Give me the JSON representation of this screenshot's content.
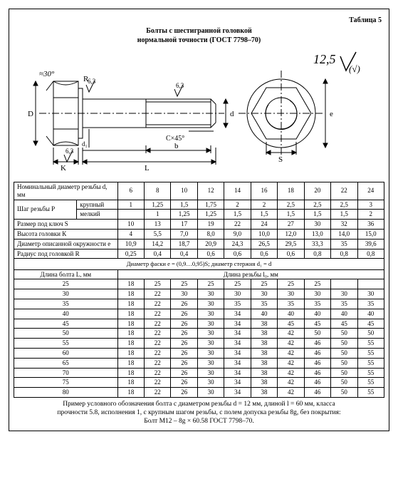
{
  "table_label": "Таблица 5",
  "title_line1": "Болты с шестигранной головкой",
  "title_line2": "нормальной точности (ГОСТ 7798–70)",
  "diagram": {
    "surface_mark": "12,5",
    "surface_sub": "(√)",
    "angle": "≈30°",
    "radius": "R",
    "ra1": "6,3",
    "ra2": "6,3",
    "ra3": "6,3",
    "dim_D": "D",
    "dim_d": "d",
    "dim_d1": "d₁",
    "dim_K": "K",
    "dim_L": "L",
    "dim_b": "b",
    "chamfer": "C×45°",
    "dim_S": "S",
    "dim_e": "e"
  },
  "t1": {
    "rows_hdr": [
      "Номинальный диаметр резьбы d, мм",
      "Шаг резьбы Р",
      "крупный",
      "мелкий",
      "Размер под ключ S",
      "Высота головки К",
      "Диаметр описанной окружности     е",
      "Радиус под головкой R"
    ],
    "diams": [
      "6",
      "8",
      "10",
      "12",
      "14",
      "16",
      "18",
      "20",
      "22",
      "24"
    ],
    "coarse": [
      "1",
      "1,25",
      "1,5",
      "1,75",
      "2",
      "2",
      "2,5",
      "2,5",
      "2,5",
      "3"
    ],
    "fine": [
      "",
      "1",
      "1,25",
      "1,25",
      "1,5",
      "1,5",
      "1,5",
      "1,5",
      "1,5",
      "2"
    ],
    "S": [
      "10",
      "13",
      "17",
      "19",
      "22",
      "24",
      "27",
      "30",
      "32",
      "36"
    ],
    "K": [
      "4",
      "5,5",
      "7,0",
      "8,0",
      "9,0",
      "10,0",
      "12,0",
      "13,0",
      "14,0",
      "15,0"
    ],
    "e": [
      "10,9",
      "14,2",
      "18,7",
      "20,9",
      "24,3",
      "26,5",
      "29,5",
      "33,3",
      "35",
      "39,6"
    ],
    "R": [
      "0,25",
      "0,4",
      "0,4",
      "0,6",
      "0,6",
      "0,6",
      "0,6",
      "0,8",
      "0,8",
      "0,8"
    ]
  },
  "sep": "Диаметр фаски е = (0,9…0,95)S;          диаметр стержня d₁ = d",
  "t2": {
    "left_hdr": "Длина болта L, мм",
    "right_hdr": "Длина резьбы l₀, мм",
    "L": [
      "25",
      "30",
      "35",
      "40",
      "45",
      "50",
      "55",
      "60",
      "65",
      "70",
      "75",
      "80"
    ],
    "rows": [
      [
        "18",
        "25",
        "25",
        "25",
        "25",
        "25",
        "25",
        "25",
        "",
        ""
      ],
      [
        "18",
        "22",
        "30",
        "30",
        "30",
        "30",
        "30",
        "30",
        "30",
        "30"
      ],
      [
        "18",
        "22",
        "26",
        "30",
        "35",
        "35",
        "35",
        "35",
        "35",
        "35"
      ],
      [
        "18",
        "22",
        "26",
        "30",
        "34",
        "40",
        "40",
        "40",
        "40",
        "40"
      ],
      [
        "18",
        "22",
        "26",
        "30",
        "34",
        "38",
        "45",
        "45",
        "45",
        "45"
      ],
      [
        "18",
        "22",
        "26",
        "30",
        "34",
        "38",
        "42",
        "50",
        "50",
        "50"
      ],
      [
        "18",
        "22",
        "26",
        "30",
        "34",
        "38",
        "42",
        "46",
        "50",
        "55"
      ],
      [
        "18",
        "22",
        "26",
        "30",
        "34",
        "38",
        "42",
        "46",
        "50",
        "55"
      ],
      [
        "18",
        "22",
        "26",
        "30",
        "34",
        "38",
        "42",
        "46",
        "50",
        "55"
      ],
      [
        "18",
        "22",
        "26",
        "30",
        "34",
        "38",
        "42",
        "46",
        "50",
        "55"
      ],
      [
        "18",
        "22",
        "26",
        "30",
        "34",
        "38",
        "42",
        "46",
        "50",
        "55"
      ],
      [
        "18",
        "22",
        "26",
        "30",
        "34",
        "38",
        "42",
        "46",
        "50",
        "55"
      ]
    ]
  },
  "footer1": "Пример условного обозначения болта с диаметром резьбы d = 12 мм, длиной l = 60 мм, класса",
  "footer2": "прочности 5.8, исполнения 1, с крупным шагом резьбы, с полем допуска резьбы 8g, без покрытия:",
  "footer3": "Болт М12 – 8g × 60.58 ГОСТ 7798–70."
}
